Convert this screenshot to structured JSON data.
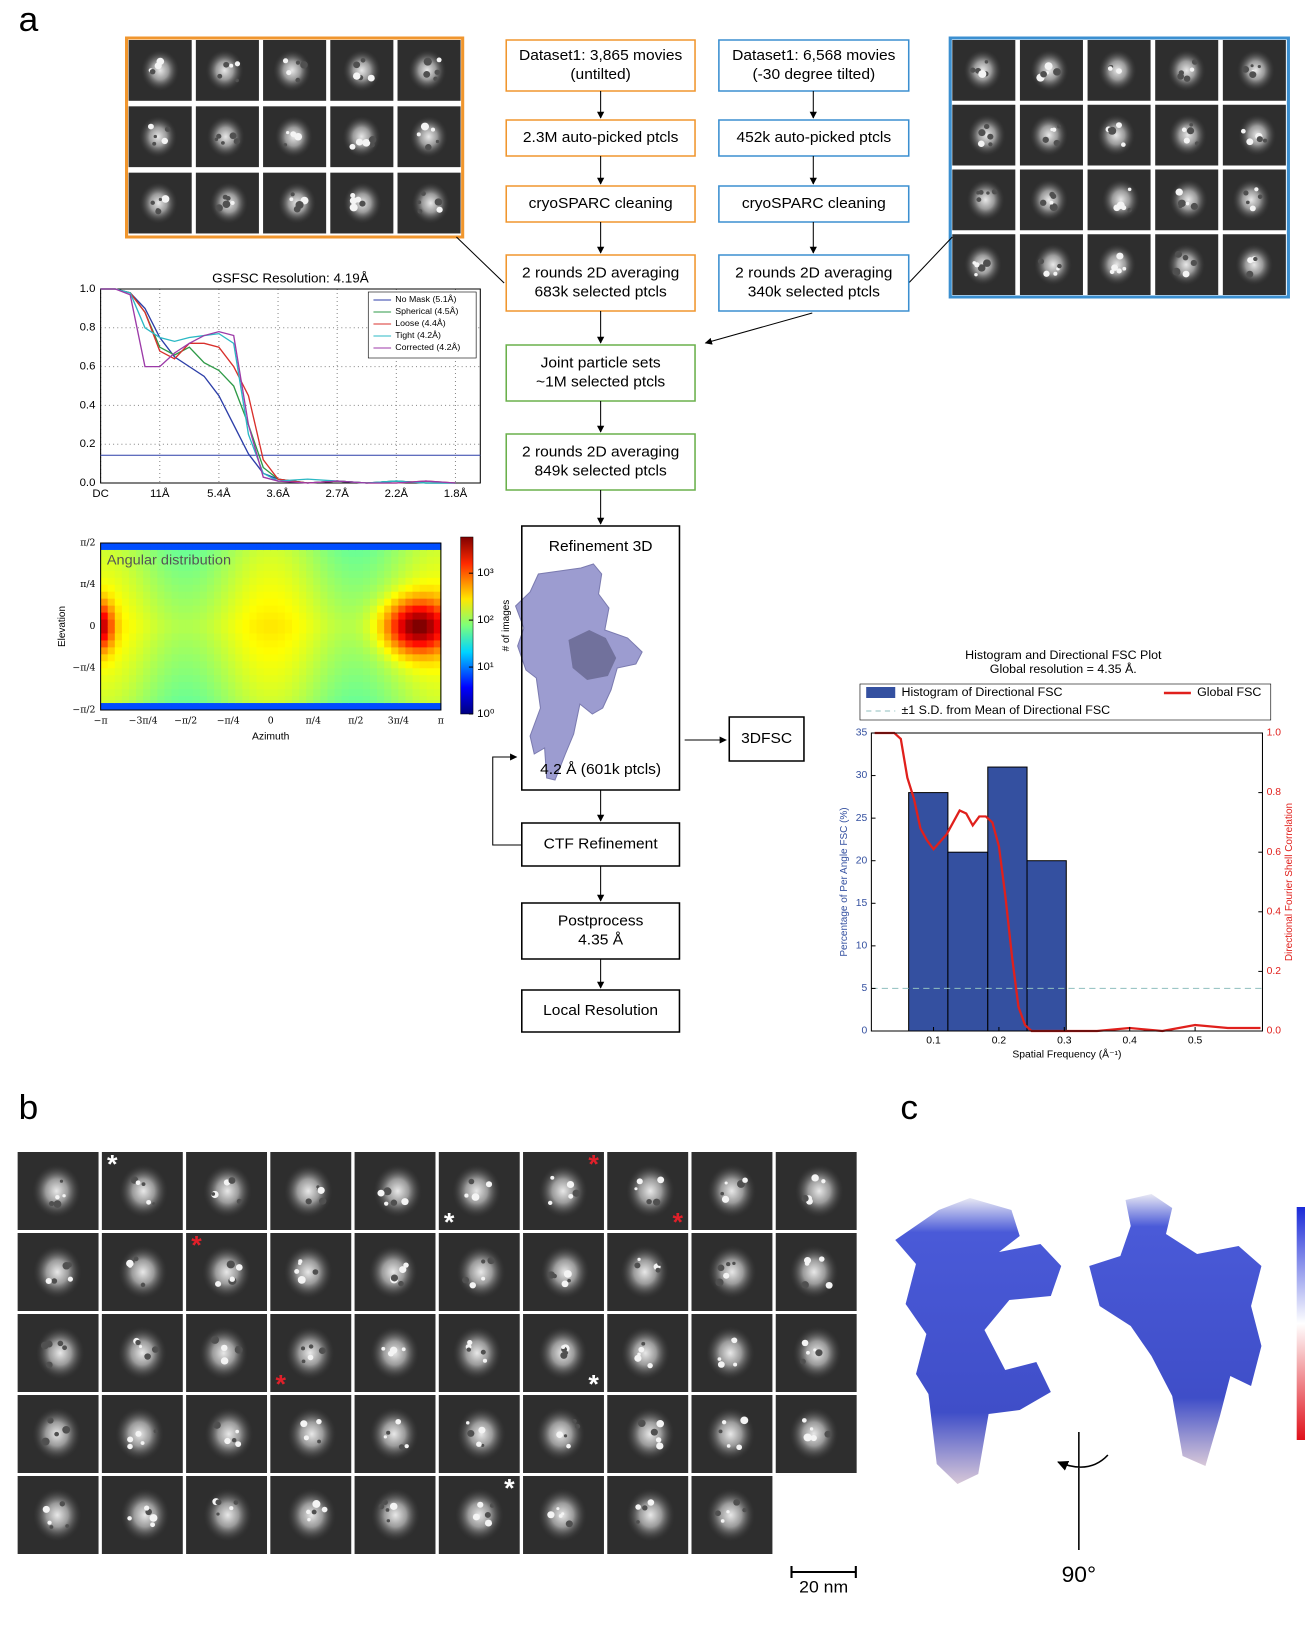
{
  "panel_labels": [
    "a",
    "b",
    "c"
  ],
  "flowchart": {
    "nodes": [
      {
        "lines": [
          "Dataset1: 3,865 movies",
          "(untilted)"
        ],
        "color": "#f0962e"
      },
      {
        "lines": [
          "Dataset1: 6,568 movies",
          "(-30 degree tilted)"
        ],
        "color": "#3b8fd0"
      },
      {
        "lines": [
          "2.3M auto-picked ptcls"
        ],
        "color": "#f0962e"
      },
      {
        "lines": [
          "452k auto-picked ptcls"
        ],
        "color": "#3b8fd0"
      },
      {
        "lines": [
          "cryoSPARC cleaning"
        ],
        "color": "#f0962e"
      },
      {
        "lines": [
          "cryoSPARC cleaning"
        ],
        "color": "#3b8fd0"
      },
      {
        "lines": [
          "2 rounds 2D averaging",
          "683k selected ptcls"
        ],
        "color": "#f0962e"
      },
      {
        "lines": [
          "2 rounds 2D averaging",
          "340k selected ptcls"
        ],
        "color": "#3b8fd0"
      },
      {
        "lines": [
          "Joint particle sets",
          "~1M selected ptcls"
        ],
        "color": "#6ab04c"
      },
      {
        "lines": [
          "2 rounds 2D averaging",
          "849k selected ptcls"
        ],
        "color": "#6ab04c"
      },
      {
        "lines": [
          "Refinement 3D",
          "4.2 Å (601k ptcls)"
        ],
        "color": "#000000"
      },
      {
        "lines": [
          "3DFSC"
        ],
        "color": "#000000"
      },
      {
        "lines": [
          "CTF Refinement"
        ],
        "color": "#000000"
      },
      {
        "lines": [
          "Postprocess",
          "4.35 Å"
        ],
        "color": "#000000"
      },
      {
        "lines": [
          "Local Resolution"
        ],
        "color": "#000000"
      }
    ]
  },
  "chart_data": [
    {
      "type": "line",
      "title": "GSFSC Resolution: 4.19Å",
      "legend": "upper right",
      "grid": true,
      "x": [
        0,
        0.25,
        0.5,
        0.75,
        1,
        1.25,
        1.5,
        1.75,
        2,
        2.25,
        2.5,
        2.75,
        3,
        3.5,
        4,
        4.5,
        5,
        5.5,
        6
      ],
      "series": [
        {
          "name": "No Mask (5.1Å)",
          "color": "#2c3ea8",
          "values": [
            1,
            1,
            0.98,
            0.9,
            0.75,
            0.65,
            0.6,
            0.55,
            0.45,
            0.3,
            0.15,
            0.05,
            0.02,
            0,
            0.01,
            0,
            0.01,
            0,
            0
          ]
        },
        {
          "name": "Spherical (4.5Å)",
          "color": "#2e9a47",
          "values": [
            1,
            1,
            0.98,
            0.88,
            0.7,
            0.66,
            0.7,
            0.62,
            0.58,
            0.5,
            0.3,
            0.08,
            0.02,
            0,
            0.01,
            0,
            0.01,
            0,
            0
          ]
        },
        {
          "name": "Loose (4.4Å)",
          "color": "#d8302c",
          "values": [
            1,
            1,
            0.98,
            0.88,
            0.68,
            0.64,
            0.72,
            0.72,
            0.7,
            0.6,
            0.45,
            0.12,
            0.02,
            0,
            0.01,
            0,
            0,
            0.01,
            0
          ]
        },
        {
          "name": "Tight (4.2Å)",
          "color": "#2bb8c4",
          "values": [
            1,
            1,
            0.98,
            0.8,
            0.75,
            0.73,
            0.75,
            0.76,
            0.77,
            0.72,
            0.25,
            0.05,
            0.01,
            0.02,
            0.01,
            0,
            0.01,
            0,
            0
          ]
        },
        {
          "name": "Corrected (4.2Å)",
          "color": "#9c3aa8",
          "values": [
            1,
            1,
            0.97,
            0.6,
            0.6,
            0.67,
            0.72,
            0.76,
            0.78,
            0.76,
            0.3,
            0.03,
            0.01,
            0,
            0.01,
            0,
            0,
            0.01,
            0
          ]
        }
      ],
      "threshold": {
        "value": 0.143,
        "color": "#2c3ea8"
      },
      "xlim": [
        0,
        6.42
      ],
      "ylim": [
        0,
        1
      ],
      "xticks": [
        {
          "value": 0,
          "label": "DC"
        },
        {
          "value": 1,
          "label": "11Å"
        },
        {
          "value": 2,
          "label": "5.4Å"
        },
        {
          "value": 3,
          "label": "3.6Å"
        },
        {
          "value": 4,
          "label": "2.7Å"
        },
        {
          "value": 5,
          "label": "2.2Å"
        },
        {
          "value": 6,
          "label": "1.8Å"
        }
      ],
      "yticks": [
        {
          "value": 0,
          "label": "0.0"
        },
        0.2,
        0.4,
        0.6,
        0.8,
        {
          "value": 1,
          "label": "1.0"
        }
      ]
    },
    {
      "type": "heatmap",
      "title": "Angular distribution",
      "xlabel": "Azimuth",
      "ylabel": "Elevation",
      "xlim": [
        -3.1416,
        3.1416
      ],
      "ylim": [
        -1.5708,
        1.5708
      ],
      "xticks": [
        {
          "value": -3.1416,
          "label": "−π"
        },
        {
          "value": -2.3562,
          "label": "−3π/4"
        },
        {
          "value": -1.5708,
          "label": "−π/2"
        },
        {
          "value": -0.7854,
          "label": "−π/4"
        },
        0,
        {
          "value": 0.7854,
          "label": "π/4"
        },
        {
          "value": 1.5708,
          "label": "π/2"
        },
        {
          "value": 2.3562,
          "label": "3π/4"
        },
        {
          "value": 3.1416,
          "label": "π"
        }
      ],
      "yticks": [
        {
          "value": -1.5708,
          "label": "−π/2"
        },
        {
          "value": -0.7854,
          "label": "−π/4"
        },
        0,
        {
          "value": 0.7854,
          "label": "π/4"
        },
        {
          "value": 1.5708,
          "label": "π/2"
        }
      ],
      "colorbar": {
        "label": "# of images",
        "log": true,
        "lim": [
          1,
          5900
        ],
        "ticks": [
          {
            "value": 1,
            "label": "10⁰"
          },
          {
            "value": 10,
            "label": "10¹"
          },
          {
            "value": 100,
            "label": "10²"
          },
          {
            "value": 1000,
            "label": "10³"
          }
        ]
      }
    },
    {
      "type": "histogram",
      "title": "Histogram and Directional FSC Plot",
      "subtitle": "Global resolution = 4.35 Å.",
      "name": "Histogram of Directional FSC",
      "color": "#3450a0",
      "bins": [
        0.062,
        0.122,
        0.183,
        0.243,
        0.303
      ],
      "values": [
        28,
        21,
        31,
        20
      ],
      "sd": {
        "name": "±1 S.D. from Mean of Directional FSC",
        "color": "#8fbfbf",
        "values": [
          5
        ]
      },
      "series": [
        {
          "name": "Global FSC",
          "color": "#e0201c",
          "axis": "y2",
          "x": [
            0.01,
            0.04,
            0.05,
            0.06,
            0.07,
            0.08,
            0.09,
            0.1,
            0.12,
            0.14,
            0.15,
            0.16,
            0.17,
            0.18,
            0.19,
            0.2,
            0.21,
            0.22,
            0.23,
            0.24,
            0.25,
            0.3,
            0.35,
            0.4,
            0.45,
            0.5,
            0.55,
            0.6
          ],
          "values": [
            1,
            1,
            0.98,
            0.85,
            0.78,
            0.68,
            0.64,
            0.61,
            0.66,
            0.74,
            0.73,
            0.69,
            0.72,
            0.72,
            0.7,
            0.62,
            0.45,
            0.25,
            0.08,
            0.02,
            0,
            0,
            0,
            0.01,
            0,
            0.02,
            0.01,
            0.01
          ]
        }
      ],
      "xlabel": "Spatial Frequency (Å⁻¹)",
      "ylabel": "Percentage of Per Angle FSC (%)",
      "y2label": "Directional Fourier Shell Correlation",
      "xlim": [
        0.005,
        0.603
      ],
      "ylim": [
        0,
        35
      ],
      "y2lim": [
        0,
        1
      ],
      "xticks": [
        0.1,
        0.2,
        0.3,
        0.4,
        0.5
      ],
      "yticks": [
        0,
        5,
        10,
        15,
        20,
        25,
        30,
        35
      ],
      "y2ticks": [
        {
          "value": 0,
          "label": "0.0"
        },
        0.2,
        0.4,
        0.6,
        0.8,
        {
          "value": 1,
          "label": "1.0"
        }
      ]
    }
  ],
  "class_averages": {
    "markers": [
      {
        "symbol": "*",
        "color": "#ffffff"
      },
      {
        "symbol": "*",
        "color": "#ffffff"
      },
      {
        "symbol": "*",
        "color": "#e0202a"
      },
      {
        "symbol": "*",
        "color": "#e0202a"
      },
      {
        "symbol": "*",
        "color": "#e0202a"
      },
      {
        "symbol": "*",
        "color": "#e0202a"
      },
      {
        "symbol": "*",
        "color": "#ffffff"
      },
      {
        "symbol": "*",
        "color": "#ffffff"
      }
    ],
    "scale_bar": "20 nm"
  },
  "rotation_label": "90°"
}
